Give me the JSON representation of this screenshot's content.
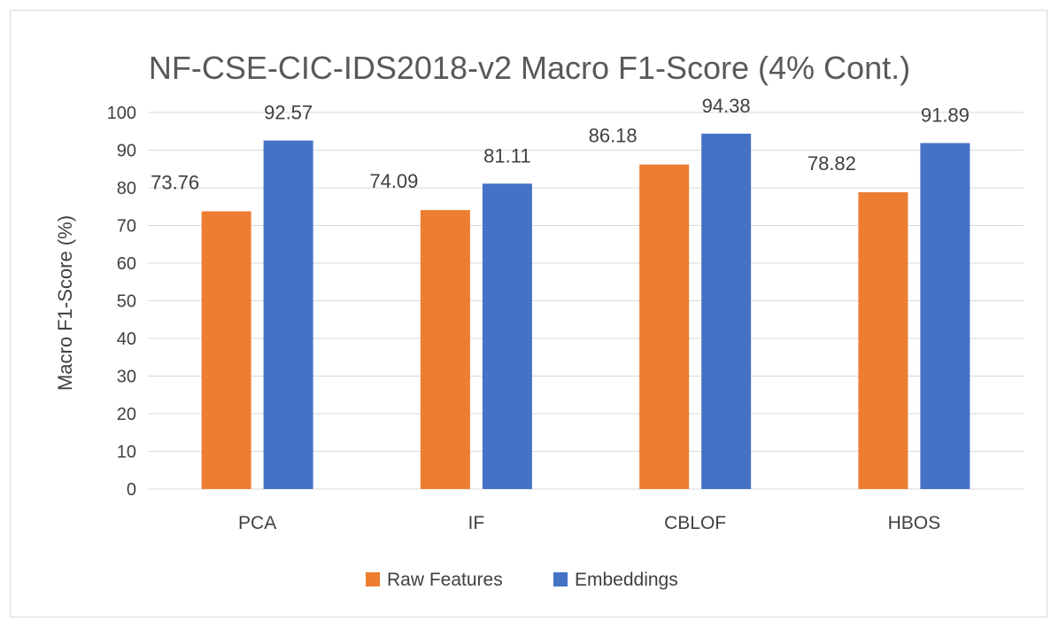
{
  "chart_data": {
    "type": "bar",
    "title": "NF-CSE-CIC-IDS2018-v2 Macro F1-Score (4% Cont.)",
    "xlabel": "",
    "ylabel": "Macro F1-Score (%)",
    "categories": [
      "PCA",
      "IF",
      "CBLOF",
      "HBOS"
    ],
    "series": [
      {
        "name": "Raw Features",
        "color": "#ED7D31",
        "values": [
          73.76,
          74.09,
          86.18,
          78.82
        ],
        "labels": [
          "73.76",
          "74.09",
          "86.18",
          "78.82"
        ]
      },
      {
        "name": "Embeddings",
        "color": "#4472C4",
        "values": [
          92.57,
          81.11,
          94.38,
          91.89
        ],
        "labels": [
          "92.57",
          "81.11",
          "94.38",
          "91.89"
        ]
      }
    ],
    "ylim": [
      0,
      100
    ],
    "yticks": [
      0,
      10,
      20,
      30,
      40,
      50,
      60,
      70,
      80,
      90,
      100
    ],
    "ytick_labels": [
      "0",
      "10",
      "20",
      "30",
      "40",
      "50",
      "60",
      "70",
      "80",
      "90",
      "100"
    ],
    "grid": true,
    "legend_position": "bottom"
  }
}
